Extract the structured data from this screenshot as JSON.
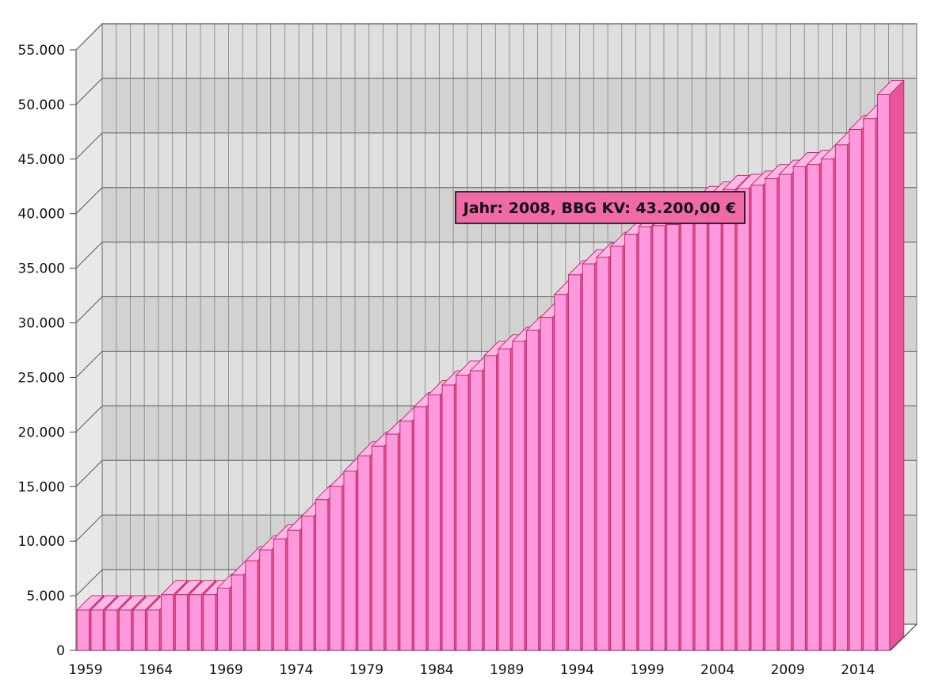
{
  "chart_data": {
    "type": "bar",
    "x": [
      1959,
      1960,
      1961,
      1962,
      1963,
      1964,
      1965,
      1966,
      1967,
      1968,
      1969,
      1970,
      1971,
      1972,
      1973,
      1974,
      1975,
      1976,
      1977,
      1978,
      1979,
      1980,
      1981,
      1982,
      1983,
      1984,
      1985,
      1986,
      1987,
      1988,
      1989,
      1990,
      1991,
      1992,
      1993,
      1994,
      1995,
      1996,
      1997,
      1998,
      1999,
      2000,
      2001,
      2002,
      2003,
      2004,
      2005,
      2006,
      2007,
      2008,
      2009,
      2010,
      2011,
      2012,
      2013,
      2014,
      2015,
      2016
    ],
    "values": [
      3700,
      3700,
      3700,
      3700,
      3700,
      3700,
      5100,
      5100,
      5100,
      5100,
      5700,
      6900,
      8200,
      9200,
      10200,
      11000,
      12300,
      13800,
      15000,
      16400,
      17800,
      18700,
      19800,
      21000,
      22300,
      23400,
      24300,
      25200,
      25600,
      27000,
      27600,
      28300,
      29300,
      30500,
      32600,
      34400,
      35400,
      36000,
      37000,
      38100,
      38800,
      38900,
      39000,
      39200,
      41200,
      41600,
      42200,
      42300,
      42600,
      43200,
      43600,
      44300,
      44500,
      45000,
      46300,
      47700,
      48700,
      50900
    ],
    "x_ticks": [
      "1959",
      "1964",
      "1969",
      "1974",
      "1979",
      "1984",
      "1989",
      "1994",
      "1999",
      "2004",
      "2009",
      "2014"
    ],
    "y_ticks": [
      "0",
      "5.000",
      "10.000",
      "15.000",
      "20.000",
      "25.000",
      "30.000",
      "35.000",
      "40.000",
      "45.000",
      "50.000",
      "55.000"
    ],
    "ylim": [
      0,
      55000
    ],
    "grid": true,
    "bar_color": "#ff99dd",
    "bar_edge_color": "#c0306e",
    "bar_side_color": "#e8559a"
  },
  "tooltip": {
    "text": "Jahr: 2008, BBG KV: 43.200,00 €",
    "background": "#f06aa8"
  }
}
